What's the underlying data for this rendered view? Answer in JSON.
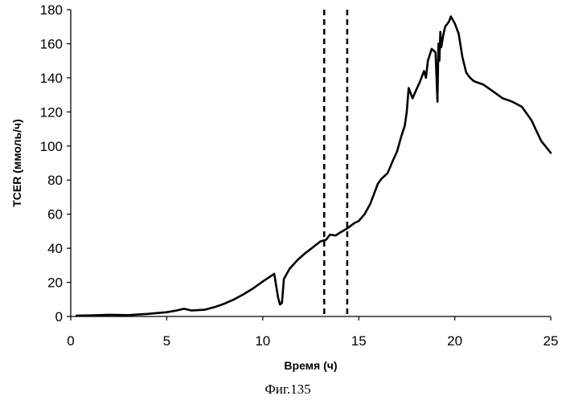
{
  "chart_data": {
    "type": "line",
    "xlabel": "Время (ч)",
    "ylabel": "TCER (ммоль/ч)",
    "xlim": [
      0,
      25
    ],
    "ylim": [
      0,
      180
    ],
    "xticks": [
      0,
      5,
      10,
      15,
      20,
      25
    ],
    "yticks": [
      0,
      20,
      40,
      60,
      80,
      100,
      120,
      140,
      160,
      180
    ],
    "grid": false,
    "legend": "none",
    "series": [
      {
        "color": "#000000",
        "x": [
          0.3,
          1.0,
          2.0,
          3.0,
          4.0,
          5.0,
          5.5,
          5.9,
          6.3,
          7.0,
          7.5,
          8.0,
          8.5,
          9.0,
          9.5,
          10.0,
          10.4,
          10.6,
          10.7,
          10.8,
          10.9,
          11.0,
          11.1,
          11.4,
          11.8,
          12.2,
          12.6,
          13.0,
          13.3,
          13.5,
          13.8,
          14.0,
          14.3,
          14.5,
          14.8,
          15.0,
          15.3,
          15.6,
          15.8,
          16.0,
          16.2,
          16.5,
          16.8,
          17.0,
          17.2,
          17.4,
          17.5,
          17.6,
          17.8,
          18.0,
          18.2,
          18.4,
          18.5,
          18.6,
          18.8,
          19.0,
          19.1,
          19.15,
          19.2,
          19.25,
          19.3,
          19.4,
          19.5,
          19.7,
          19.8,
          20.0,
          20.2,
          20.4,
          20.6,
          20.8,
          21.0,
          21.5,
          22.0,
          22.5,
          23.0,
          23.5,
          24.0,
          24.5,
          25.0
        ],
        "y": [
          0.5,
          0.6,
          1.0,
          0.8,
          1.5,
          2.5,
          3.5,
          4.5,
          3.5,
          4.0,
          5.5,
          7.5,
          10.0,
          13.0,
          16.5,
          20.5,
          23.5,
          25.0,
          18.0,
          11.0,
          7.0,
          8.0,
          22.0,
          28.0,
          33.0,
          37.0,
          40.5,
          44.0,
          45.0,
          48.0,
          47.5,
          49.0,
          51.0,
          52.5,
          55.0,
          56.0,
          60.0,
          66.0,
          72.0,
          78.0,
          81.0,
          84.0,
          92.0,
          97.0,
          105.0,
          112.0,
          120.0,
          134.0,
          128.0,
          133.0,
          138.0,
          144.0,
          140.0,
          150.0,
          157.0,
          155.0,
          126.0,
          160.0,
          150.0,
          167.0,
          158.0,
          165.0,
          170.0,
          173.0,
          176.0,
          172.0,
          166.0,
          152.0,
          143.0,
          140.0,
          138.0,
          136.0,
          132.0,
          128.0,
          126.0,
          123.0,
          115.0,
          103.0,
          96.0
        ]
      }
    ],
    "vlines": [
      {
        "x": 13.2,
        "style": "dashed"
      },
      {
        "x": 14.4,
        "style": "dashed"
      }
    ]
  },
  "caption": "Фиг.135"
}
